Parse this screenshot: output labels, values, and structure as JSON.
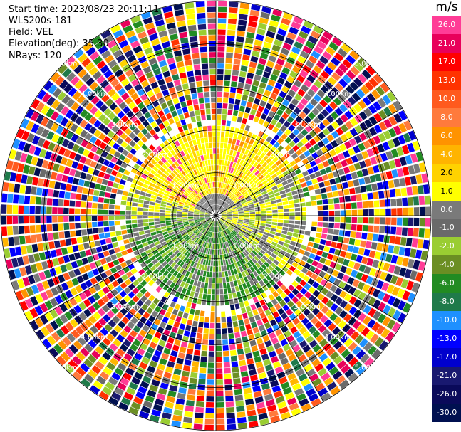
{
  "header": {
    "start_time": "Start time: 2023/08/23 20:11:11",
    "instrument": "WLS200s-181",
    "field": "Field: VEL",
    "elevation": "Elevation(deg): 35.30",
    "nrays": "NRays: 120"
  },
  "chart_data": {
    "type": "heatmap",
    "projection": "polar (PPI)",
    "field": "VEL",
    "units": "m/s",
    "nrays": 120,
    "elevation_deg": 35.3,
    "range_ring_labels": [
      "1.00km",
      "2.00km",
      "3.00km",
      "4.00km",
      "5.00km"
    ],
    "colorbar": {
      "title": "m/s",
      "ticks": [
        "26.0",
        "21.0",
        "17.0",
        "13.0",
        "10.0",
        "8.0",
        "6.0",
        "4.0",
        "2.0",
        "1.0",
        "0.0",
        "-1.0",
        "-2.0",
        "-4.0",
        "-6.0",
        "-8.0",
        "-10.0",
        "-13.0",
        "-17.0",
        "-21.0",
        "-26.0",
        "-30.0"
      ],
      "colors": [
        "#ff3c96",
        "#e8005a",
        "#ff0000",
        "#ff3300",
        "#ff5a1e",
        "#ff7a3c",
        "#ff9300",
        "#ffb400",
        "#ffd200",
        "#ffff00",
        "#7a7a7a",
        "#6a6a6a",
        "#9acd32",
        "#6b8e23",
        "#228b22",
        "#1f7a4a",
        "#1e90ff",
        "#0000ff",
        "#0000cd",
        "#191970",
        "#0a0a5a",
        "#001050"
      ]
    },
    "description_regions": {
      "near_field_colors": [
        "#ffff00",
        "#ffd200",
        "#ff9300",
        "#7a7a7a",
        "#9acd32",
        "#228b22"
      ],
      "far_field_noise": true
    }
  }
}
